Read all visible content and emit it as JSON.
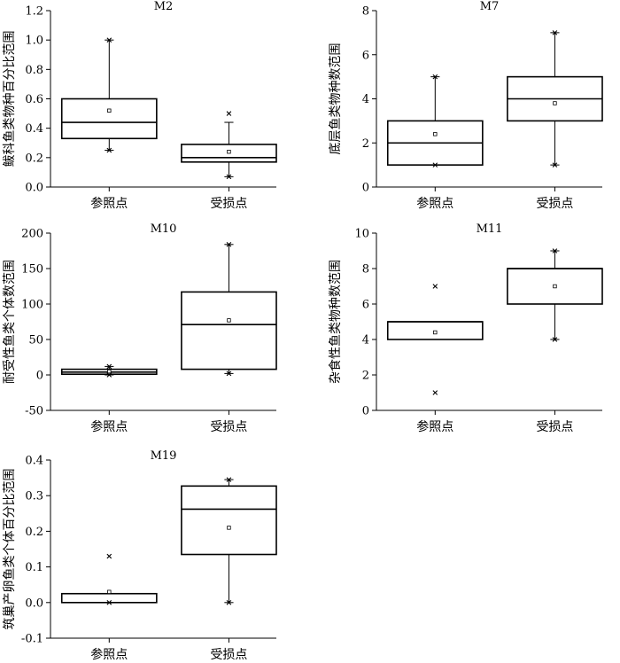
{
  "charts": [
    {
      "type": "box",
      "title": "M2",
      "ylabel": "鲅科鱼类物种百分比范围",
      "categories": [
        "参照点",
        "受损点"
      ],
      "ylim": [
        0,
        1.2
      ],
      "yticks": [
        0,
        0.2,
        0.4,
        0.6,
        0.8,
        1.0,
        1.2
      ],
      "tick_decimals": 1,
      "boxes": [
        {
          "whisker_low": 0.25,
          "q1": 0.33,
          "median": 0.44,
          "q3": 0.6,
          "whisker_high": 1.0,
          "mean": 0.52,
          "extremes": [
            0.25,
            1.0
          ]
        },
        {
          "whisker_low": 0.07,
          "q1": 0.17,
          "median": 0.2,
          "q3": 0.29,
          "whisker_high": 0.44,
          "mean": 0.24,
          "extremes": [
            0.07,
            0.5
          ]
        }
      ]
    },
    {
      "type": "box",
      "title": "M7",
      "ylabel": "底层鱼类物种数范围",
      "categories": [
        "参照点",
        "受损点"
      ],
      "ylim": [
        0,
        8
      ],
      "yticks": [
        0,
        2,
        4,
        6,
        8
      ],
      "tick_decimals": 0,
      "boxes": [
        {
          "whisker_low": 1,
          "q1": 1,
          "median": 2,
          "q3": 3,
          "whisker_high": 5,
          "mean": 2.4,
          "extremes": [
            1,
            5
          ]
        },
        {
          "whisker_low": 1,
          "q1": 3,
          "median": 4,
          "q3": 5,
          "whisker_high": 7,
          "mean": 3.8,
          "extremes": [
            1,
            7
          ]
        }
      ]
    },
    {
      "type": "box",
      "title": "M10",
      "ylabel": "耐受性鱼类个体数范围",
      "categories": [
        "参照点",
        "受损点"
      ],
      "ylim": [
        -50,
        200
      ],
      "yticks": [
        -50,
        0,
        50,
        100,
        150,
        200
      ],
      "tick_decimals": 0,
      "boxes": [
        {
          "whisker_low": 0,
          "q1": 1,
          "median": 4,
          "q3": 8,
          "whisker_high": 12,
          "mean": 5,
          "extremes": [
            0,
            12
          ]
        },
        {
          "whisker_low": 2,
          "q1": 8,
          "median": 71,
          "q3": 117,
          "whisker_high": 184,
          "mean": 77,
          "extremes": [
            2,
            184
          ]
        }
      ]
    },
    {
      "type": "box",
      "title": "M11",
      "ylabel": "杂食性鱼类物种数范围",
      "categories": [
        "参照点",
        "受损点"
      ],
      "ylim": [
        0,
        10
      ],
      "yticks": [
        0,
        2,
        4,
        6,
        8,
        10
      ],
      "tick_decimals": 0,
      "boxes": [
        {
          "whisker_low": 4,
          "q1": 4,
          "median": 5,
          "q3": 5,
          "whisker_high": 5,
          "mean": 4.4,
          "extremes": [
            1,
            7
          ]
        },
        {
          "whisker_low": 4,
          "q1": 6,
          "median": 8,
          "q3": 8,
          "whisker_high": 9,
          "mean": 7,
          "extremes": [
            4,
            9
          ]
        }
      ]
    },
    {
      "type": "box",
      "title": "M19",
      "ylabel": "筑巢产卵鱼类个体百分比范围",
      "categories": [
        "参照点",
        "受损点"
      ],
      "ylim": [
        -0.1,
        0.4
      ],
      "yticks": [
        -0.1,
        0.0,
        0.1,
        0.2,
        0.3,
        0.4
      ],
      "tick_decimals": 1,
      "boxes": [
        {
          "whisker_low": 0,
          "q1": 0,
          "median": 0.025,
          "q3": 0.025,
          "whisker_high": 0.025,
          "mean": 0.03,
          "extremes": [
            0,
            0.13
          ]
        },
        {
          "whisker_low": 0,
          "q1": 0.135,
          "median": 0.262,
          "q3": 0.327,
          "whisker_high": 0.345,
          "mean": 0.21,
          "extremes": [
            0,
            0.345
          ]
        }
      ]
    }
  ]
}
